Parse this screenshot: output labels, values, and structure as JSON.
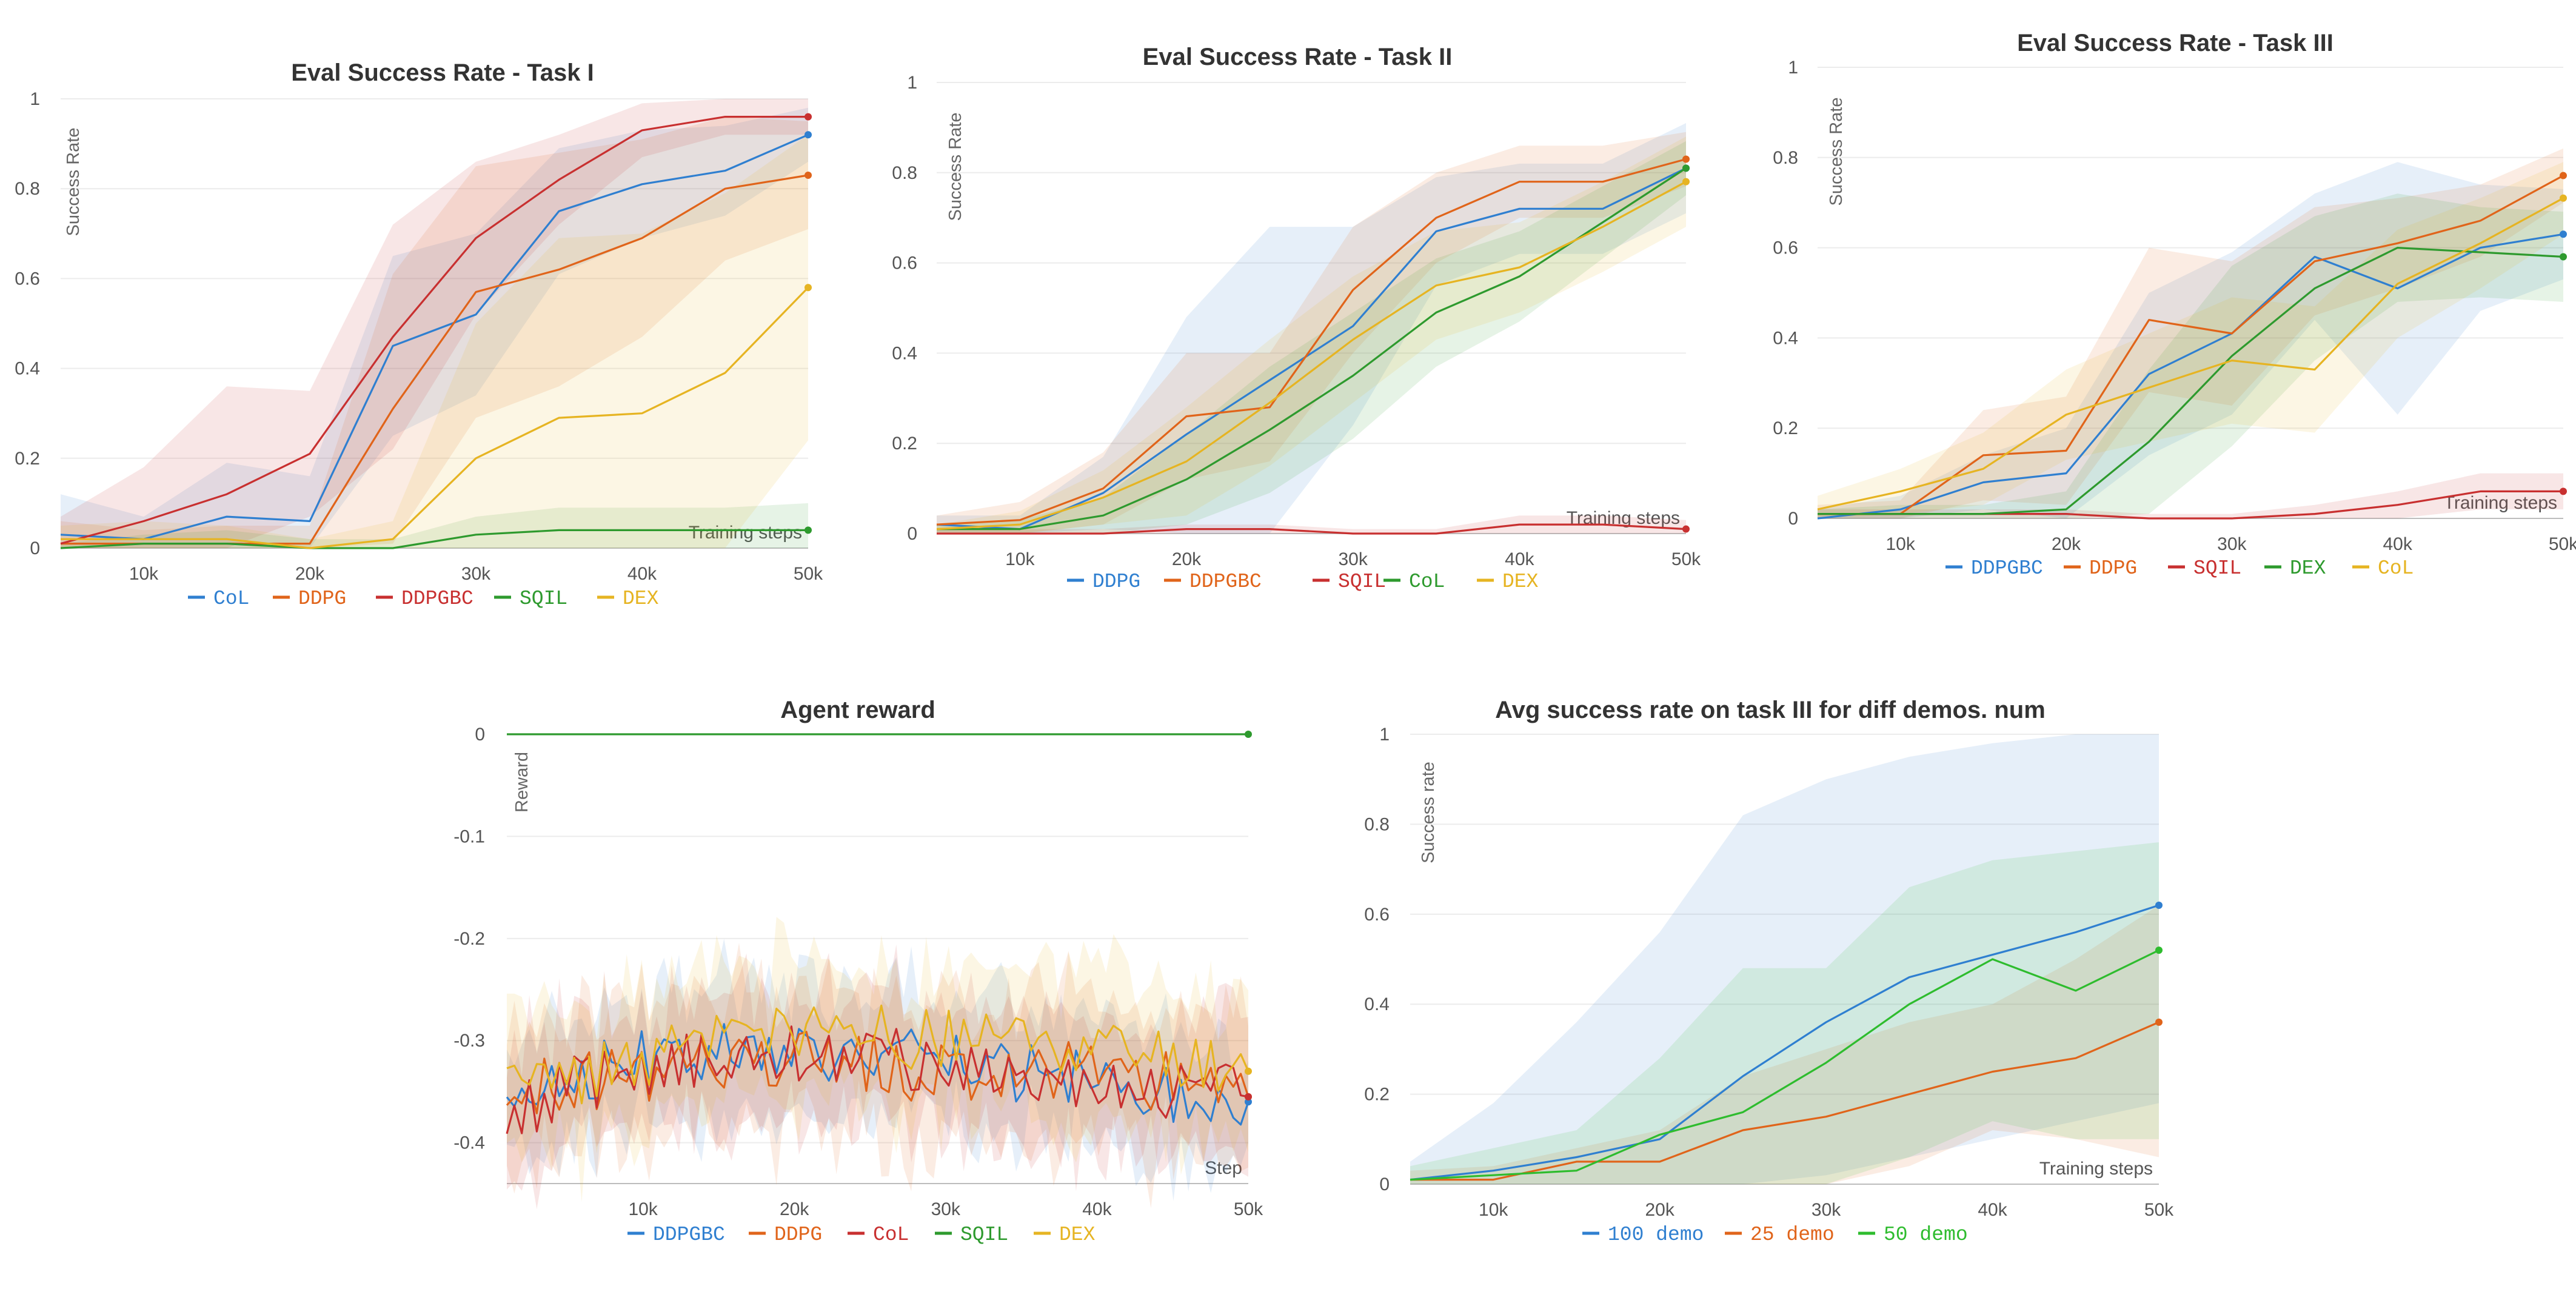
{
  "chart_data": [
    {
      "type": "line",
      "title": "Eval Success Rate - Task I",
      "ylabel": "Success Rate",
      "xlabel": "Training steps",
      "x": [
        5000,
        10000,
        15000,
        20000,
        25000,
        30000,
        35000,
        40000,
        45000,
        50000
      ],
      "xlim": [
        5000,
        50000
      ],
      "ylim": [
        0,
        1
      ],
      "xticks": [
        10000,
        20000,
        30000,
        40000,
        50000
      ],
      "xtick_labels": [
        "10k",
        "20k",
        "30k",
        "40k",
        "50k"
      ],
      "yticks": [
        0,
        0.2,
        0.4,
        0.6,
        0.8,
        1
      ],
      "ytick_labels": [
        "0",
        "0.2",
        "0.4",
        "0.6",
        "0.8",
        "1"
      ],
      "series": [
        {
          "name": "CoL",
          "color": "#2f7fd0",
          "values": [
            0.03,
            0.02,
            0.07,
            0.06,
            0.45,
            0.52,
            0.75,
            0.81,
            0.84,
            0.92
          ],
          "band": [
            0.09,
            0.05,
            0.12,
            0.1,
            0.2,
            0.18,
            0.14,
            0.12,
            0.1,
            0.06
          ]
        },
        {
          "name": "DDPG",
          "color": "#e0641a",
          "values": [
            0.01,
            0.01,
            0.01,
            0.01,
            0.31,
            0.57,
            0.62,
            0.69,
            0.8,
            0.83
          ],
          "band": [
            0.05,
            0.03,
            0.04,
            0.04,
            0.3,
            0.28,
            0.26,
            0.22,
            0.16,
            0.12
          ]
        },
        {
          "name": "DDPGBC",
          "color": "#c83030",
          "values": [
            0.01,
            0.06,
            0.12,
            0.21,
            0.47,
            0.69,
            0.82,
            0.93,
            0.96,
            0.96
          ],
          "band": [
            0.06,
            0.12,
            0.24,
            0.14,
            0.25,
            0.17,
            0.1,
            0.06,
            0.04,
            0.04
          ]
        },
        {
          "name": "SQIL",
          "color": "#2e9a2e",
          "values": [
            0.0,
            0.01,
            0.01,
            0.0,
            0.0,
            0.03,
            0.04,
            0.04,
            0.04,
            0.04
          ],
          "band": [
            0.01,
            0.02,
            0.03,
            0.02,
            0.02,
            0.04,
            0.05,
            0.05,
            0.05,
            0.06
          ]
        },
        {
          "name": "DEX",
          "color": "#e6b422",
          "values": [
            0.02,
            0.02,
            0.02,
            0.0,
            0.02,
            0.2,
            0.29,
            0.3,
            0.39,
            0.58
          ],
          "band": [
            0.03,
            0.04,
            0.03,
            0.02,
            0.04,
            0.3,
            0.4,
            0.4,
            0.4,
            0.34
          ]
        }
      ]
    },
    {
      "type": "line",
      "title": "Eval Success Rate - Task II",
      "ylabel": "Success Rate",
      "xlabel": "Training steps",
      "x": [
        5000,
        10000,
        15000,
        20000,
        25000,
        30000,
        35000,
        40000,
        45000,
        50000
      ],
      "xlim": [
        5000,
        50000
      ],
      "ylim": [
        0,
        1
      ],
      "xticks": [
        10000,
        20000,
        30000,
        40000,
        50000
      ],
      "xtick_labels": [
        "10k",
        "20k",
        "30k",
        "40k",
        "50k"
      ],
      "yticks": [
        0,
        0.2,
        0.4,
        0.6,
        0.8,
        1
      ],
      "ytick_labels": [
        "0",
        "0.2",
        "0.4",
        "0.6",
        "0.8",
        "1"
      ],
      "series": [
        {
          "name": "DDPG",
          "color": "#2f7fd0",
          "values": [
            0.02,
            0.01,
            0.09,
            0.22,
            0.34,
            0.46,
            0.67,
            0.72,
            0.72,
            0.81
          ],
          "band": [
            0.02,
            0.03,
            0.08,
            0.26,
            0.34,
            0.22,
            0.12,
            0.1,
            0.1,
            0.1
          ]
        },
        {
          "name": "DDPGBC",
          "color": "#e0641a",
          "values": [
            0.02,
            0.03,
            0.1,
            0.26,
            0.28,
            0.54,
            0.7,
            0.78,
            0.78,
            0.83
          ],
          "band": [
            0.02,
            0.04,
            0.08,
            0.14,
            0.12,
            0.14,
            0.1,
            0.08,
            0.08,
            0.06
          ]
        },
        {
          "name": "SQIL",
          "color": "#c83030",
          "values": [
            0.0,
            0.0,
            0.0,
            0.01,
            0.01,
            0.0,
            0.0,
            0.02,
            0.02,
            0.01
          ],
          "band": [
            0.01,
            0.01,
            0.01,
            0.01,
            0.01,
            0.01,
            0.01,
            0.02,
            0.02,
            0.02
          ]
        },
        {
          "name": "CoL",
          "color": "#2e9a2e",
          "values": [
            0.01,
            0.01,
            0.04,
            0.12,
            0.23,
            0.35,
            0.49,
            0.57,
            0.69,
            0.81
          ],
          "band": [
            0.01,
            0.02,
            0.04,
            0.1,
            0.14,
            0.14,
            0.12,
            0.1,
            0.08,
            0.06
          ]
        },
        {
          "name": "DEX",
          "color": "#e6b422",
          "values": [
            0.01,
            0.02,
            0.08,
            0.16,
            0.29,
            0.43,
            0.55,
            0.59,
            0.68,
            0.78
          ],
          "band": [
            0.01,
            0.03,
            0.06,
            0.12,
            0.14,
            0.14,
            0.12,
            0.1,
            0.1,
            0.1
          ]
        }
      ]
    },
    {
      "type": "line",
      "title": "Eval Success Rate - Task III",
      "ylabel": "Success Rate",
      "xlabel": "Training steps",
      "x": [
        5000,
        10000,
        15000,
        20000,
        25000,
        30000,
        35000,
        40000,
        45000,
        50000
      ],
      "xlim": [
        5000,
        50000
      ],
      "ylim": [
        0,
        1
      ],
      "xticks": [
        10000,
        20000,
        30000,
        40000,
        50000
      ],
      "xtick_labels": [
        "10k",
        "20k",
        "30k",
        "40k",
        "50k"
      ],
      "yticks": [
        0,
        0.2,
        0.4,
        0.6,
        0.8,
        1
      ],
      "ytick_labels": [
        "0",
        "0.2",
        "0.4",
        "0.6",
        "0.8",
        "1"
      ],
      "series": [
        {
          "name": "DDPGBC",
          "color": "#2f7fd0",
          "values": [
            0.0,
            0.02,
            0.08,
            0.1,
            0.32,
            0.41,
            0.58,
            0.51,
            0.6,
            0.63
          ],
          "band": [
            0.02,
            0.03,
            0.06,
            0.1,
            0.18,
            0.18,
            0.14,
            0.28,
            0.14,
            0.1
          ]
        },
        {
          "name": "DDPG",
          "color": "#e0641a",
          "values": [
            0.01,
            0.01,
            0.14,
            0.15,
            0.44,
            0.41,
            0.57,
            0.61,
            0.66,
            0.76
          ],
          "band": [
            0.02,
            0.03,
            0.1,
            0.12,
            0.16,
            0.16,
            0.12,
            0.1,
            0.08,
            0.06
          ]
        },
        {
          "name": "SQIL",
          "color": "#c83030",
          "values": [
            0.01,
            0.01,
            0.01,
            0.01,
            0.0,
            0.0,
            0.01,
            0.03,
            0.06,
            0.06
          ],
          "band": [
            0.01,
            0.01,
            0.01,
            0.01,
            0.01,
            0.01,
            0.02,
            0.03,
            0.04,
            0.04
          ]
        },
        {
          "name": "DEX",
          "color": "#2e9a2e",
          "values": [
            0.01,
            0.01,
            0.01,
            0.02,
            0.17,
            0.36,
            0.51,
            0.6,
            0.59,
            0.58
          ],
          "band": [
            0.01,
            0.02,
            0.02,
            0.04,
            0.16,
            0.2,
            0.16,
            0.12,
            0.1,
            0.1
          ]
        },
        {
          "name": "CoL",
          "color": "#e6b422",
          "values": [
            0.02,
            0.06,
            0.11,
            0.23,
            0.29,
            0.35,
            0.33,
            0.52,
            0.61,
            0.71
          ],
          "band": [
            0.03,
            0.05,
            0.08,
            0.1,
            0.12,
            0.14,
            0.14,
            0.12,
            0.1,
            0.08
          ]
        }
      ]
    },
    {
      "type": "line",
      "title": "Agent reward",
      "ylabel": "Reward",
      "xlabel": "Step",
      "x_start": 1000,
      "x_end": 50000,
      "num_points": 100,
      "xlim": [
        1000,
        50000
      ],
      "ylim": [
        -0.44,
        0
      ],
      "xticks": [
        10000,
        20000,
        30000,
        40000,
        50000
      ],
      "xtick_labels": [
        "10k",
        "20k",
        "30k",
        "40k",
        "50k"
      ],
      "yticks": [
        0,
        -0.1,
        -0.2,
        -0.3,
        -0.4
      ],
      "ytick_labels": [
        "0",
        "-0.1",
        "-0.2",
        "-0.3",
        "-0.4"
      ],
      "series": [
        {
          "name": "DDPGBC",
          "color": "#2f7fd0",
          "base": [
            -0.35,
            -0.33,
            -0.31,
            -0.31,
            -0.31,
            -0.32,
            -0.33,
            -0.34,
            -0.35,
            -0.36
          ],
          "end_value": -0.36,
          "band": 0.06
        },
        {
          "name": "DDPG",
          "color": "#e0641a",
          "base": [
            -0.35,
            -0.34,
            -0.33,
            -0.32,
            -0.32,
            -0.33,
            -0.33,
            -0.33,
            -0.34,
            -0.35
          ],
          "end_value": -0.355,
          "band": 0.07
        },
        {
          "name": "CoL",
          "color": "#c83030",
          "base": [
            -0.37,
            -0.34,
            -0.32,
            -0.31,
            -0.31,
            -0.32,
            -0.33,
            -0.34,
            -0.35,
            -0.35
          ],
          "end_value": -0.355,
          "band": 0.06
        },
        {
          "name": "SQIL",
          "color": "#2e9a2e",
          "base": [
            0,
            0,
            0,
            0,
            0,
            0,
            0,
            0,
            0,
            0
          ],
          "end_value": 0,
          "band": 0
        },
        {
          "name": "DEX",
          "color": "#e6b422",
          "base": [
            -0.35,
            -0.33,
            -0.31,
            -0.3,
            -0.29,
            -0.3,
            -0.3,
            -0.31,
            -0.32,
            -0.33
          ],
          "end_value": -0.33,
          "band": 0.07
        }
      ]
    },
    {
      "type": "line",
      "title": "Avg success rate on task III for diff demos. num",
      "ylabel": "Success rate",
      "xlabel": "Training steps",
      "x": [
        5000,
        10000,
        15000,
        20000,
        25000,
        30000,
        35000,
        40000,
        45000,
        50000
      ],
      "xlim": [
        5000,
        50000
      ],
      "ylim": [
        0,
        1
      ],
      "xticks": [
        10000,
        20000,
        30000,
        40000,
        50000
      ],
      "xtick_labels": [
        "10k",
        "20k",
        "30k",
        "40k",
        "50k"
      ],
      "yticks": [
        0,
        0.2,
        0.4,
        0.6,
        0.8,
        1
      ],
      "ytick_labels": [
        "0",
        "0.2",
        "0.4",
        "0.6",
        "0.8",
        "1"
      ],
      "series": [
        {
          "name": "100 demo",
          "color": "#2f7fd0",
          "values": [
            0.01,
            0.03,
            0.06,
            0.1,
            0.24,
            0.36,
            0.46,
            0.51,
            0.56,
            0.62
          ],
          "band_lo": [
            0,
            0,
            0,
            0,
            0,
            0.02,
            0.06,
            0.1,
            0.14,
            0.18
          ],
          "band_hi": [
            0.05,
            0.18,
            0.36,
            0.56,
            0.82,
            0.9,
            0.95,
            0.98,
            1.0,
            1.0
          ]
        },
        {
          "name": "25 demo",
          "color": "#e0641a",
          "values": [
            0.01,
            0.01,
            0.05,
            0.05,
            0.12,
            0.15,
            0.2,
            0.25,
            0.28,
            0.36
          ],
          "band_lo": [
            0,
            0,
            0,
            0,
            0,
            0,
            0.04,
            0.12,
            0.1,
            0.06
          ],
          "band_hi": [
            0.03,
            0.04,
            0.08,
            0.12,
            0.24,
            0.3,
            0.36,
            0.4,
            0.5,
            0.62
          ]
        },
        {
          "name": "50 demo",
          "color": "#2ebc2e",
          "values": [
            0.01,
            0.02,
            0.03,
            0.11,
            0.16,
            0.27,
            0.4,
            0.5,
            0.43,
            0.52
          ],
          "band_lo": [
            0,
            0,
            0,
            0,
            0,
            0,
            0.06,
            0.14,
            0.1,
            0.1
          ],
          "band_hi": [
            0.04,
            0.08,
            0.12,
            0.28,
            0.48,
            0.48,
            0.66,
            0.72,
            0.74,
            0.76
          ]
        }
      ]
    }
  ]
}
